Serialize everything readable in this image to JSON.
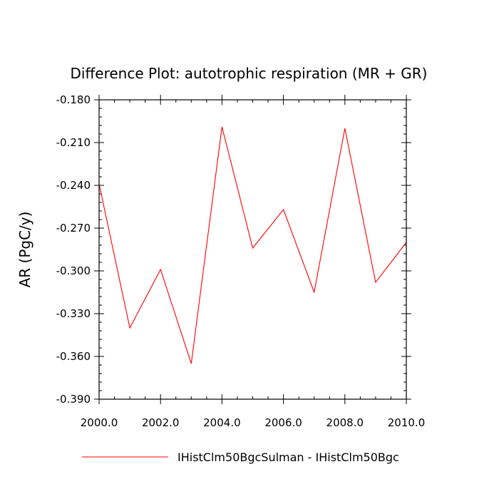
{
  "chart_data": {
    "type": "line",
    "title": "Difference Plot: autotrophic respiration (MR + GR)",
    "xlabel": "",
    "ylabel": "AR  (PgC/y)",
    "xlim": [
      2000,
      2010
    ],
    "ylim": [
      -0.39,
      -0.18
    ],
    "x_ticks": [
      2000,
      2002,
      2004,
      2006,
      2008,
      2010
    ],
    "x_tick_labels": [
      "2000.0",
      "2002.0",
      "2004.0",
      "2006.0",
      "2008.0",
      "2010.0"
    ],
    "y_ticks": [
      -0.18,
      -0.21,
      -0.24,
      -0.27,
      -0.3,
      -0.33,
      -0.36,
      -0.39
    ],
    "y_tick_labels": [
      "-0.180",
      "-0.210",
      "-0.240",
      "-0.270",
      "-0.300",
      "-0.330",
      "-0.360",
      "-0.390"
    ],
    "grid": false,
    "legend_position": "bottom",
    "series": [
      {
        "name": "IHistClm50BgcSulman - IHistClm50Bgc",
        "color": "#ff0000",
        "x": [
          2000,
          2001,
          2002,
          2003,
          2004,
          2005,
          2006,
          2007,
          2008,
          2009,
          2010
        ],
        "y": [
          -0.239,
          -0.34,
          -0.299,
          -0.365,
          -0.199,
          -0.284,
          -0.257,
          -0.315,
          -0.2,
          -0.308,
          -0.28
        ]
      }
    ]
  }
}
